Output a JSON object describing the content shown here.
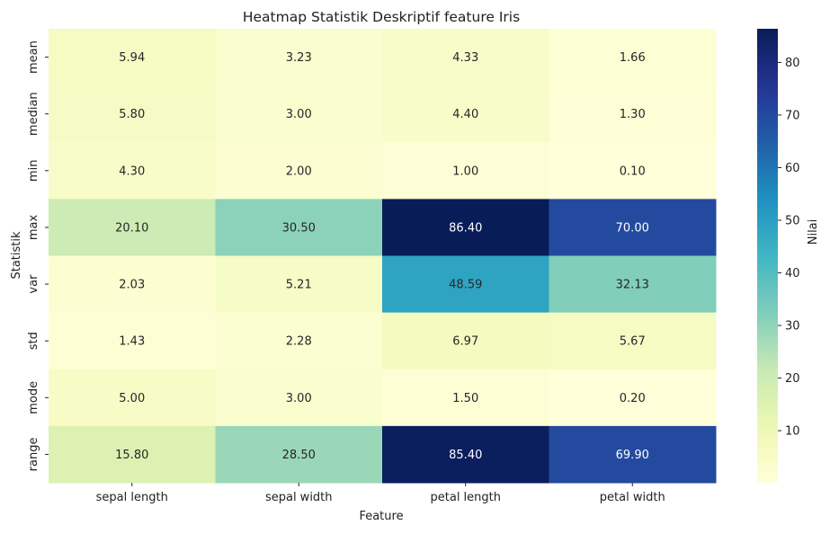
{
  "chart_data": {
    "type": "heatmap",
    "title": "Heatmap Statistik Deskriptif feature Iris",
    "xlabel": "Feature",
    "ylabel": "Statistik",
    "columns": [
      "sepal length",
      "sepal width",
      "petal length",
      "petal width"
    ],
    "rows": [
      "mean",
      "median",
      "min",
      "max",
      "var",
      "std",
      "mode",
      "range"
    ],
    "values": [
      [
        5.94,
        3.23,
        4.33,
        1.66
      ],
      [
        5.8,
        3.0,
        4.4,
        1.3
      ],
      [
        4.3,
        2.0,
        1.0,
        0.1
      ],
      [
        20.1,
        30.5,
        86.4,
        70.0
      ],
      [
        2.03,
        5.21,
        48.59,
        32.13
      ],
      [
        1.43,
        2.28,
        6.97,
        5.67
      ],
      [
        5.0,
        3.0,
        1.5,
        0.2
      ],
      [
        15.8,
        28.5,
        85.4,
        69.9
      ]
    ],
    "colorbar": {
      "label": "Nilai",
      "range": [
        0.1,
        86.4
      ],
      "ticks": [
        10,
        20,
        30,
        40,
        50,
        60,
        70,
        80
      ],
      "colormap": "YlGnBu"
    },
    "annotations": "values shown with 2 decimals",
    "grid": false
  }
}
